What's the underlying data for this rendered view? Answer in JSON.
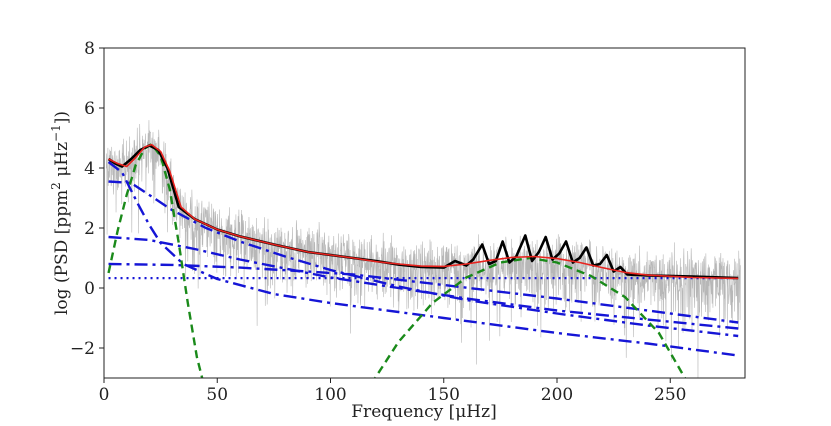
{
  "chart_data": {
    "type": "line",
    "xlabel": "Frequency [μHz]",
    "ylabel_parts": {
      "prefix": "log (PSD [ppm",
      "sup1": "2",
      "mid": " μHz",
      "sup2": "−1",
      "suffix": "])"
    },
    "xlim": [
      0,
      283
    ],
    "ylim": [
      -3,
      8
    ],
    "xticks": [
      0,
      50,
      100,
      150,
      200,
      250
    ],
    "xtick_labels": [
      "0",
      "50",
      "100",
      "150",
      "200",
      "250"
    ],
    "yticks": [
      -2,
      0,
      2,
      4,
      6,
      8
    ],
    "ytick_labels": [
      "−2",
      "0",
      "2",
      "4",
      "6",
      "8"
    ],
    "grid": false,
    "legend": "none",
    "series": [
      {
        "key": "raw",
        "style": "raw-spectrum",
        "color": "#aaaaaa",
        "description_points": [
          [
            2,
            4.3
          ],
          [
            20,
            4.6
          ],
          [
            50,
            2.4
          ],
          [
            100,
            1.3
          ],
          [
            150,
            0.8
          ],
          [
            200,
            0.6
          ],
          [
            280,
            0.5
          ]
        ]
      },
      {
        "key": "smoothed",
        "style": "solid",
        "color": "#000000",
        "points": [
          [
            2,
            4.3
          ],
          [
            5,
            4.15
          ],
          [
            8,
            4.05
          ],
          [
            12,
            4.3
          ],
          [
            16,
            4.6
          ],
          [
            20,
            4.75
          ],
          [
            24,
            4.6
          ],
          [
            28,
            4.0
          ],
          [
            33,
            2.7
          ],
          [
            40,
            2.3
          ],
          [
            50,
            1.95
          ],
          [
            60,
            1.72
          ],
          [
            75,
            1.45
          ],
          [
            90,
            1.2
          ],
          [
            100,
            1.1
          ],
          [
            110,
            1.0
          ],
          [
            120,
            0.9
          ],
          [
            130,
            0.78
          ],
          [
            140,
            0.7
          ],
          [
            150,
            0.68
          ],
          [
            155,
            0.9
          ],
          [
            160,
            0.75
          ],
          [
            163,
            0.95
          ],
          [
            167,
            1.45
          ],
          [
            170,
            0.8
          ],
          [
            173,
            0.9
          ],
          [
            176,
            1.55
          ],
          [
            179,
            0.85
          ],
          [
            182,
            1.05
          ],
          [
            186,
            1.75
          ],
          [
            189,
            0.9
          ],
          [
            192,
            1.2
          ],
          [
            195,
            1.7
          ],
          [
            198,
            0.95
          ],
          [
            201,
            1.15
          ],
          [
            204,
            1.55
          ],
          [
            207,
            0.85
          ],
          [
            210,
            1.0
          ],
          [
            213,
            1.35
          ],
          [
            216,
            0.75
          ],
          [
            219,
            0.8
          ],
          [
            222,
            1.1
          ],
          [
            225,
            0.55
          ],
          [
            228,
            0.7
          ],
          [
            231,
            0.45
          ],
          [
            240,
            0.42
          ],
          [
            260,
            0.38
          ],
          [
            280,
            0.33
          ]
        ]
      },
      {
        "key": "fit",
        "style": "solid",
        "color": "#e8231e",
        "points": [
          [
            2,
            4.3
          ],
          [
            6,
            4.15
          ],
          [
            10,
            4.05
          ],
          [
            14,
            4.35
          ],
          [
            18,
            4.7
          ],
          [
            21,
            4.78
          ],
          [
            25,
            4.55
          ],
          [
            29,
            3.9
          ],
          [
            34,
            2.7
          ],
          [
            40,
            2.3
          ],
          [
            50,
            1.95
          ],
          [
            60,
            1.72
          ],
          [
            75,
            1.45
          ],
          [
            90,
            1.2
          ],
          [
            100,
            1.1
          ],
          [
            110,
            1.0
          ],
          [
            120,
            0.88
          ],
          [
            130,
            0.8
          ],
          [
            140,
            0.73
          ],
          [
            150,
            0.72
          ],
          [
            160,
            0.8
          ],
          [
            170,
            0.92
          ],
          [
            180,
            1.02
          ],
          [
            190,
            1.05
          ],
          [
            200,
            0.98
          ],
          [
            210,
            0.85
          ],
          [
            220,
            0.68
          ],
          [
            230,
            0.52
          ],
          [
            240,
            0.43
          ],
          [
            260,
            0.35
          ],
          [
            280,
            0.32
          ]
        ]
      },
      {
        "key": "osc-low",
        "style": "dashed",
        "color": "#1a8a1a",
        "points": [
          [
            2,
            0.5
          ],
          [
            6,
            1.9
          ],
          [
            10,
            3.1
          ],
          [
            14,
            4.1
          ],
          [
            18,
            4.65
          ],
          [
            21,
            4.8
          ],
          [
            25,
            4.4
          ],
          [
            29,
            3.3
          ],
          [
            33,
            1.5
          ],
          [
            37,
            -0.5
          ],
          [
            41,
            -2.3
          ],
          [
            44,
            -3.2
          ]
        ]
      },
      {
        "key": "osc-high",
        "style": "dashed",
        "color": "#1a8a1a",
        "points": [
          [
            118,
            -3.2
          ],
          [
            130,
            -1.8
          ],
          [
            145,
            -0.5
          ],
          [
            160,
            0.35
          ],
          [
            175,
            0.85
          ],
          [
            188,
            1.0
          ],
          [
            200,
            0.85
          ],
          [
            215,
            0.4
          ],
          [
            230,
            -0.3
          ],
          [
            245,
            -1.5
          ],
          [
            258,
            -3.2
          ]
        ]
      },
      {
        "key": "bg-1",
        "style": "dashdot",
        "color": "#1515d6",
        "points": [
          [
            2,
            3.55
          ],
          [
            12,
            3.5
          ],
          [
            20,
            3.1
          ],
          [
            30,
            2.6
          ],
          [
            45,
            2.0
          ],
          [
            60,
            1.55
          ],
          [
            80,
            1.05
          ],
          [
            100,
            0.6
          ],
          [
            130,
            0.05
          ],
          [
            160,
            -0.4
          ],
          [
            200,
            -0.85
          ],
          [
            240,
            -1.25
          ],
          [
            280,
            -1.6
          ]
        ]
      },
      {
        "key": "bg-2",
        "style": "dashdot",
        "color": "#1515d6",
        "points": [
          [
            2,
            4.2
          ],
          [
            8,
            3.85
          ],
          [
            15,
            2.8
          ],
          [
            20,
            2.1
          ],
          [
            25,
            1.5
          ],
          [
            35,
            0.8
          ],
          [
            50,
            0.3
          ],
          [
            75,
            -0.2
          ],
          [
            100,
            -0.5
          ],
          [
            150,
            -1.0
          ],
          [
            200,
            -1.5
          ],
          [
            240,
            -1.85
          ],
          [
            280,
            -2.25
          ]
        ]
      },
      {
        "key": "bg-3",
        "style": "dashdot",
        "color": "#1515d6",
        "points": [
          [
            2,
            1.7
          ],
          [
            20,
            1.6
          ],
          [
            40,
            1.3
          ],
          [
            60,
            0.95
          ],
          [
            80,
            0.65
          ],
          [
            100,
            0.35
          ],
          [
            130,
            0.0
          ],
          [
            160,
            -0.35
          ],
          [
            200,
            -0.75
          ],
          [
            240,
            -1.05
          ],
          [
            280,
            -1.35
          ]
        ]
      },
      {
        "key": "bg-4",
        "style": "dashdot",
        "color": "#1515d6",
        "points": [
          [
            2,
            0.8
          ],
          [
            30,
            0.77
          ],
          [
            60,
            0.68
          ],
          [
            90,
            0.55
          ],
          [
            110,
            0.45
          ],
          [
            150,
            0.1
          ],
          [
            200,
            -0.35
          ],
          [
            240,
            -0.75
          ],
          [
            280,
            -1.15
          ]
        ]
      },
      {
        "key": "white-noise",
        "style": "dotted",
        "color": "#1515d6",
        "points": [
          [
            2,
            0.33
          ],
          [
            280,
            0.33
          ]
        ]
      }
    ]
  }
}
